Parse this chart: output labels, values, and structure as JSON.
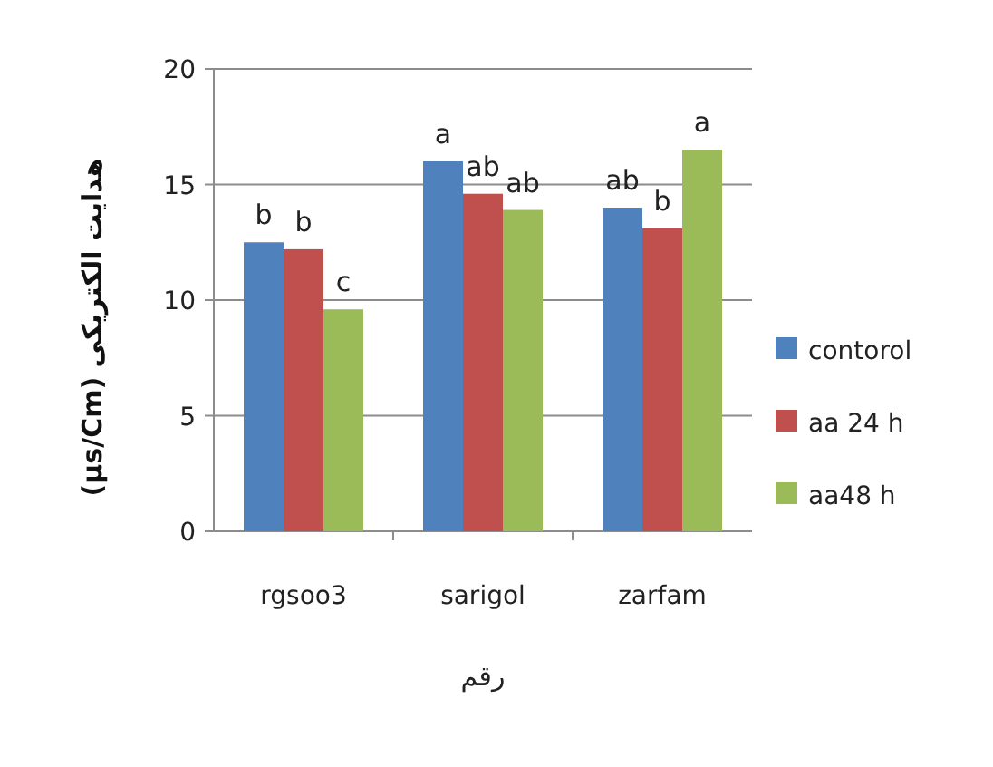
{
  "chart_data": {
    "type": "bar",
    "xlabel": "رقم",
    "ylabel": "هدایت الکتریکی (µs/Cm)",
    "categories": [
      "rgsoo3",
      "sarigol",
      "zarfam"
    ],
    "series": [
      {
        "name": "contorol",
        "color": "#4f81bd",
        "values": [
          12.5,
          16.0,
          14.0
        ],
        "value_labels": [
          "b",
          "a",
          "ab"
        ]
      },
      {
        "name": "aa 24 h",
        "color": "#c0504d",
        "values": [
          12.2,
          14.6,
          13.1
        ],
        "value_labels": [
          "b",
          "ab",
          "b"
        ]
      },
      {
        "name": "aa48 h",
        "color": "#9bbb59",
        "values": [
          9.6,
          13.9,
          16.5
        ],
        "value_labels": [
          "c",
          "ab",
          "a"
        ]
      }
    ],
    "ylim": [
      0,
      20
    ],
    "yticks": [
      0,
      5,
      10,
      15,
      20
    ],
    "grid": "y",
    "legend": "right"
  }
}
